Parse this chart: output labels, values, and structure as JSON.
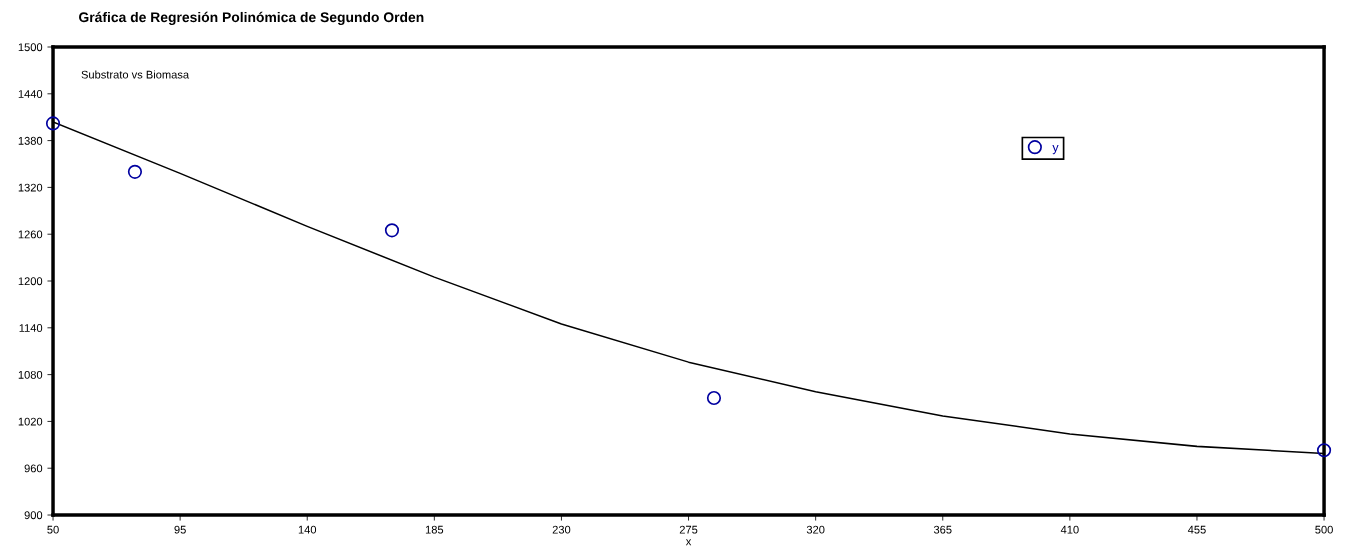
{
  "chart_data": {
    "type": "scatter",
    "title": "Gráfica de Regresión Polinómica de Segundo Orden",
    "xlabel": "x",
    "annotations": [
      "Substrato vs Biomasa"
    ],
    "x": [
      50,
      79,
      170,
      284,
      500
    ],
    "series": [
      {
        "name": "y",
        "color": "#0000a0",
        "marker": "circle",
        "values": [
          1402,
          1340,
          1265,
          1050,
          983
        ]
      },
      {
        "type": "line",
        "color": "#000000",
        "marker": "none",
        "line_style": "solid",
        "x": [
          50,
          95,
          140,
          185,
          230,
          275,
          320,
          365,
          410,
          455,
          500
        ],
        "values": [
          1404,
          1338,
          1270,
          1205,
          1145,
          1096,
          1058,
          1027,
          1004,
          988,
          979
        ]
      }
    ],
    "xlim": [
      50,
      500
    ],
    "xticks": [
      50,
      95,
      140,
      185,
      230,
      275,
      320,
      365,
      410,
      455,
      500
    ],
    "ylim": [
      900,
      1500
    ],
    "yticks": [
      900,
      960,
      1020,
      1080,
      1140,
      1200,
      1260,
      1320,
      1380,
      1440,
      1500
    ],
    "grid": false,
    "legend": "top right"
  }
}
